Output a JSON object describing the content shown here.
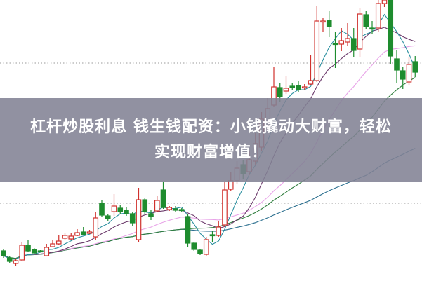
{
  "headline": {
    "line1": "杠杆炒股利息 钱生钱配资：小钱撬动大财富，轻松",
    "line2": "实现财富增值！"
  },
  "colors": {
    "up": "#d0312d",
    "down": "#1e8c2e",
    "ma5": "#2a8f9f",
    "ma10": "#6b3a6b",
    "ma20": "#e8a4e8",
    "ma30": "#2f7d3d",
    "ma60": "#2b6f8f",
    "band": "#828294"
  },
  "chart_data": {
    "type": "candlestick",
    "grid": "dotted horizontal",
    "moving_averages": [
      5,
      10,
      20,
      30,
      60
    ],
    "ylim": [
      0,
      400
    ],
    "ohlc_note_order": "open,close,high,low",
    "candles": [
      [
        42,
        35,
        45,
        32
      ],
      [
        32,
        27,
        35,
        24
      ],
      [
        24,
        28,
        30,
        21
      ],
      [
        29,
        50,
        54,
        28
      ],
      [
        50,
        42,
        57,
        40
      ],
      [
        44,
        39,
        46,
        38
      ],
      [
        42,
        41,
        43,
        40
      ],
      [
        35,
        47,
        52,
        34
      ],
      [
        48,
        52,
        57,
        47
      ],
      [
        52,
        56,
        65,
        51
      ],
      [
        60,
        64,
        67,
        58
      ],
      [
        59,
        63,
        68,
        58
      ],
      [
        64,
        68,
        73,
        63
      ],
      [
        69,
        65,
        76,
        64
      ],
      [
        67,
        69,
        72,
        66
      ],
      [
        62,
        89,
        97,
        58
      ],
      [
        110,
        93,
        115,
        90
      ],
      [
        92,
        88,
        94,
        84
      ],
      [
        98,
        106,
        123,
        92
      ],
      [
        103,
        98,
        107,
        95
      ],
      [
        100,
        95,
        104,
        92
      ],
      [
        95,
        82,
        97,
        78
      ],
      [
        58,
        115,
        132,
        55
      ],
      [
        115,
        98,
        117,
        94
      ],
      [
        95,
        91,
        100,
        86
      ],
      [
        99,
        114,
        120,
        97
      ],
      [
        129,
        104,
        140,
        102
      ],
      [
        101,
        104,
        106,
        99
      ],
      [
        102,
        100,
        106,
        98
      ],
      [
        101,
        100,
        103,
        98
      ],
      [
        91,
        53,
        95,
        48
      ],
      [
        53,
        44,
        55,
        42
      ],
      [
        43,
        38,
        45,
        36
      ],
      [
        37,
        58,
        62,
        35
      ],
      [
        65,
        64,
        70,
        55
      ],
      [
        64,
        76,
        85,
        62
      ],
      [
        79,
        129,
        140,
        76
      ],
      [
        130,
        142,
        155,
        128
      ],
      [
        142,
        160,
        170,
        138
      ],
      [
        165,
        152,
        172,
        145
      ],
      [
        155,
        172,
        185,
        150
      ],
      [
        170,
        195,
        210,
        165
      ],
      [
        190,
        230,
        240,
        185
      ],
      [
        220,
        245,
        260,
        215
      ],
      [
        250,
        276,
        305,
        248
      ],
      [
        275,
        262,
        282,
        255
      ],
      [
        270,
        274,
        292,
        266
      ],
      [
        277,
        276,
        282,
        272
      ],
      [
        278,
        272,
        285,
        269
      ],
      [
        275,
        276,
        280,
        272
      ],
      [
        280,
        285,
        322,
        278
      ],
      [
        285,
        370,
        392,
        283
      ],
      [
        369,
        370,
        375,
        355
      ],
      [
        371,
        362,
        384,
        347
      ],
      [
        338,
        337,
        355,
        303
      ],
      [
        337,
        342,
        360,
        327
      ],
      [
        340,
        345,
        367,
        335
      ],
      [
        345,
        328,
        360,
        318
      ],
      [
        330,
        380,
        388,
        318
      ],
      [
        379,
        362,
        385,
        358
      ],
      [
        360,
        359,
        370,
        352
      ],
      [
        360,
        395,
        400,
        355
      ],
      [
        395,
        400,
        400,
        390
      ],
      [
        400,
        320,
        400,
        308
      ],
      [
        316,
        300,
        328,
        282
      ],
      [
        299,
        287,
        305,
        273
      ],
      [
        283,
        308,
        318,
        278
      ],
      [
        312,
        297,
        320,
        290
      ]
    ],
    "gridlines": [
      310,
      110
    ]
  }
}
